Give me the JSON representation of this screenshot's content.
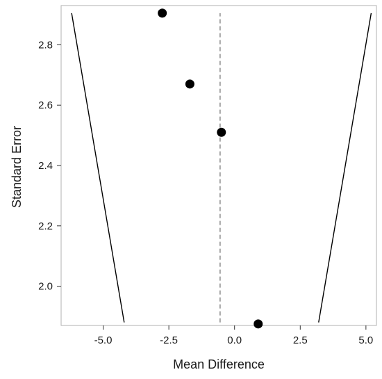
{
  "chart_data": {
    "type": "scatter",
    "subtype": "funnel plot",
    "xlabel": "Mean Difference",
    "ylabel": "Standard Error",
    "xlim": [
      -6.6,
      5.4
    ],
    "ylim": [
      2.93,
      1.87
    ],
    "y_axis_inverted": true,
    "x_ticks": [
      -5.0,
      -2.5,
      0.0,
      2.5,
      5.0
    ],
    "x_tick_labels": [
      "-5.0",
      "-2.5",
      "0.0",
      "2.5",
      "5.0"
    ],
    "y_ticks": [
      2.0,
      2.2,
      2.4,
      2.6,
      2.8
    ],
    "y_tick_labels": [
      "2.0",
      "2.2",
      "2.4",
      "2.6",
      "2.8"
    ],
    "grid": false,
    "points": [
      {
        "x": 0.9,
        "y": 1.875
      },
      {
        "x": -0.5,
        "y": 2.51
      },
      {
        "x": -1.7,
        "y": 2.67
      },
      {
        "x": -2.75,
        "y": 2.905
      }
    ],
    "pooled_estimate": -0.55,
    "funnel_lines": [
      {
        "from": {
          "x": -4.2,
          "y": 1.88
        },
        "to": {
          "x": -6.2,
          "y": 2.905
        }
      },
      {
        "from": {
          "x": 3.2,
          "y": 1.88
        },
        "to": {
          "x": 5.2,
          "y": 2.905
        }
      }
    ],
    "colors": {
      "points": "#000000",
      "funnel": "#000000",
      "reference": "#888888",
      "frame": "#b0b0b0",
      "text": "#1a1a1a"
    }
  }
}
